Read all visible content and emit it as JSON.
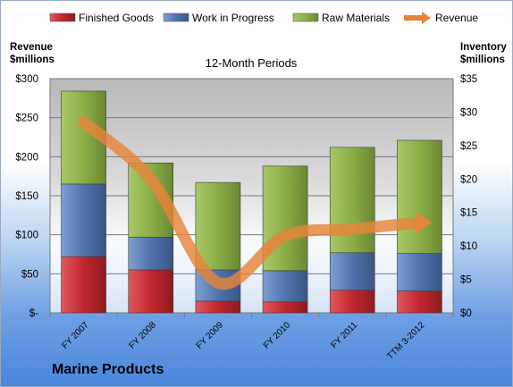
{
  "company_name": "Marine Products",
  "chart_data": {
    "type": "bar",
    "stacked": true,
    "title": "12-Month Periods",
    "left_axis_label": [
      "Revenue",
      "$millions"
    ],
    "right_axis_label": [
      "Inventory",
      "$millions"
    ],
    "categories": [
      "FY 2007",
      "FY 2008",
      "FY 2009",
      "FY 2010",
      "FY 2011",
      "TTM 3-2012"
    ],
    "left_axis": {
      "range": [
        0,
        300
      ],
      "ticks": [
        0,
        50,
        100,
        150,
        200,
        250,
        300
      ],
      "tick_labels": [
        "$-",
        "$50",
        "$100",
        "$150",
        "$200",
        "$250",
        "$300"
      ]
    },
    "right_axis": {
      "range": [
        0,
        35
      ],
      "ticks": [
        0,
        5,
        10,
        15,
        20,
        25,
        30,
        35
      ],
      "tick_labels": [
        "$0",
        "$5",
        "$10",
        "$15",
        "$20",
        "$25",
        "$30",
        "$35"
      ]
    },
    "grid": true,
    "legend_position": "top",
    "series": [
      {
        "name": "Finished Goods",
        "axis": "left",
        "values": [
          72,
          55,
          15,
          14,
          29,
          28
        ],
        "color": "#c0272d"
      },
      {
        "name": "Work in Progress",
        "axis": "left",
        "values": [
          93,
          42,
          40,
          40,
          48,
          48
        ],
        "color": "#4f73ad"
      },
      {
        "name": "Raw Materials",
        "axis": "left",
        "values": [
          119,
          95,
          112,
          134,
          135,
          145
        ],
        "color": "#8cae46"
      },
      {
        "name": "Revenue",
        "axis": "right",
        "type": "line",
        "values": [
          28.5,
          20,
          4.5,
          11.5,
          12.5,
          13.5
        ],
        "color": "#e8843a"
      }
    ]
  }
}
